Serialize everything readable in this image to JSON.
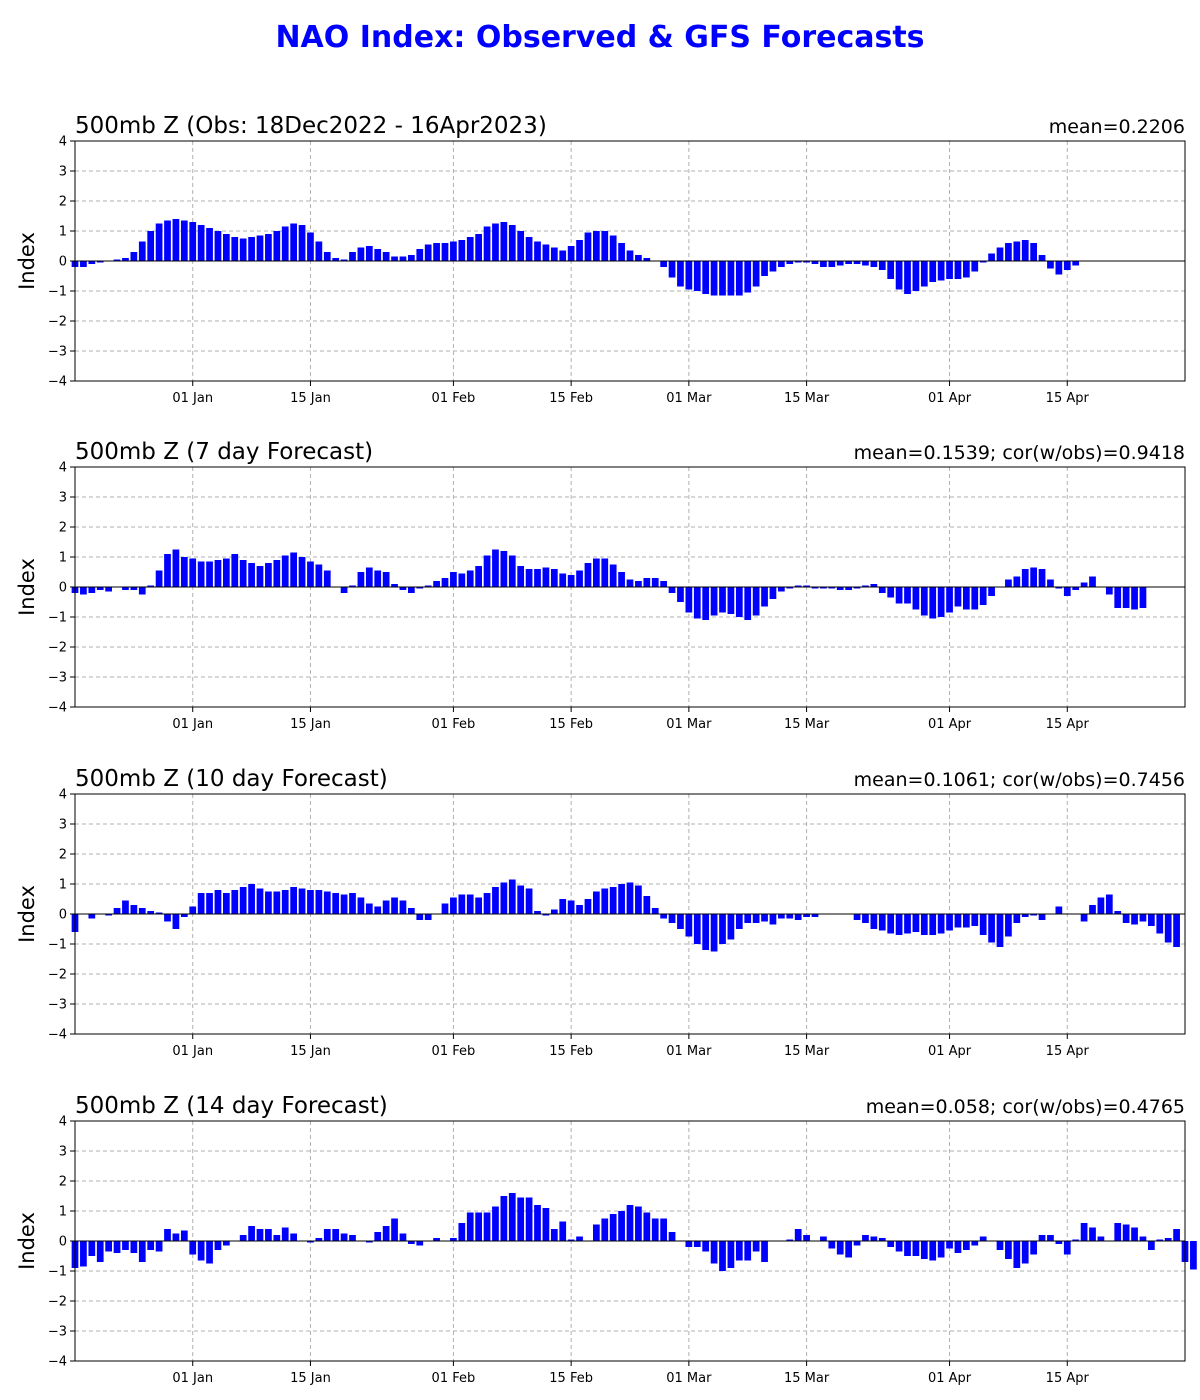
{
  "figure_title": "NAO Index: Observed & GFS Forecasts",
  "colors": {
    "title": "#0000ff",
    "bars": "#0000ff",
    "grid": "#b0b0b0",
    "axis": "#000000"
  },
  "chart_data": [
    {
      "type": "bar",
      "title": "500mb Z (Obs: 18Dec2022 - 16Apr2023)",
      "annotation": "mean=0.2206",
      "ylabel": "Index",
      "ylim": [
        -4,
        4
      ],
      "yticks": [
        4,
        3,
        2,
        1,
        0,
        -1,
        -2,
        -3,
        -4
      ],
      "grid": true,
      "x_start": "2022-12-18",
      "x_end": "2023-04-29",
      "xticks": [
        {
          "date": "2023-01-01",
          "label": "01 Jan"
        },
        {
          "date": "2023-01-15",
          "label": "15 Jan"
        },
        {
          "date": "2023-02-01",
          "label": "01 Feb"
        },
        {
          "date": "2023-02-15",
          "label": "15 Feb"
        },
        {
          "date": "2023-03-01",
          "label": "01 Mar"
        },
        {
          "date": "2023-03-15",
          "label": "15 Mar"
        },
        {
          "date": "2023-04-01",
          "label": "01 Apr"
        },
        {
          "date": "2023-04-15",
          "label": "15 Apr"
        }
      ],
      "start_date": "2022-12-18",
      "values": [
        -0.2,
        -0.2,
        -0.1,
        -0.05,
        0.0,
        0.05,
        0.1,
        0.3,
        0.65,
        1.0,
        1.25,
        1.35,
        1.4,
        1.35,
        1.3,
        1.2,
        1.1,
        1.0,
        0.9,
        0.8,
        0.75,
        0.8,
        0.85,
        0.9,
        1.0,
        1.15,
        1.25,
        1.2,
        0.95,
        0.65,
        0.3,
        0.1,
        0.05,
        0.3,
        0.45,
        0.5,
        0.4,
        0.3,
        0.15,
        0.15,
        0.2,
        0.4,
        0.55,
        0.6,
        0.6,
        0.65,
        0.7,
        0.8,
        0.9,
        1.15,
        1.25,
        1.3,
        1.2,
        1.0,
        0.8,
        0.65,
        0.55,
        0.45,
        0.35,
        0.5,
        0.7,
        0.95,
        1.0,
        1.0,
        0.85,
        0.6,
        0.35,
        0.2,
        0.1,
        0.0,
        -0.2,
        -0.55,
        -0.85,
        -0.95,
        -1.0,
        -1.1,
        -1.15,
        -1.15,
        -1.15,
        -1.15,
        -1.05,
        -0.85,
        -0.5,
        -0.35,
        -0.2,
        -0.1,
        -0.05,
        -0.05,
        -0.1,
        -0.2,
        -0.2,
        -0.15,
        -0.1,
        -0.1,
        -0.15,
        -0.2,
        -0.3,
        -0.6,
        -0.95,
        -1.1,
        -1.0,
        -0.85,
        -0.7,
        -0.65,
        -0.6,
        -0.6,
        -0.55,
        -0.35,
        -0.05,
        0.25,
        0.45,
        0.6,
        0.65,
        0.7,
        0.6,
        0.2,
        -0.25,
        -0.45,
        -0.3,
        -0.15
      ]
    },
    {
      "type": "bar",
      "title": "500mb Z (7 day Forecast)",
      "annotation": "mean=0.1539; cor(w/obs)=0.9418",
      "ylabel": "Index",
      "ylim": [
        -4,
        4
      ],
      "yticks": [
        4,
        3,
        2,
        1,
        0,
        -1,
        -2,
        -3,
        -4
      ],
      "grid": true,
      "x_start": "2022-12-18",
      "x_end": "2023-04-29",
      "xticks": [
        {
          "date": "2023-01-01",
          "label": "01 Jan"
        },
        {
          "date": "2023-01-15",
          "label": "15 Jan"
        },
        {
          "date": "2023-02-01",
          "label": "01 Feb"
        },
        {
          "date": "2023-02-15",
          "label": "15 Feb"
        },
        {
          "date": "2023-03-01",
          "label": "01 Mar"
        },
        {
          "date": "2023-03-15",
          "label": "15 Mar"
        },
        {
          "date": "2023-04-01",
          "label": "01 Apr"
        },
        {
          "date": "2023-04-15",
          "label": "15 Apr"
        }
      ],
      "start_date": "2022-12-18",
      "values": [
        -0.2,
        -0.25,
        -0.2,
        -0.1,
        -0.15,
        0.0,
        -0.1,
        -0.1,
        -0.25,
        0.05,
        0.55,
        1.1,
        1.25,
        1.0,
        0.95,
        0.85,
        0.85,
        0.9,
        0.95,
        1.1,
        0.9,
        0.8,
        0.7,
        0.8,
        0.9,
        1.05,
        1.15,
        1.0,
        0.85,
        0.75,
        0.55,
        0.0,
        -0.2,
        0.05,
        0.5,
        0.65,
        0.55,
        0.5,
        0.1,
        -0.1,
        -0.2,
        -0.05,
        0.05,
        0.2,
        0.3,
        0.5,
        0.45,
        0.55,
        0.7,
        1.05,
        1.25,
        1.2,
        1.05,
        0.7,
        0.6,
        0.6,
        0.65,
        0.6,
        0.45,
        0.4,
        0.55,
        0.8,
        0.95,
        0.95,
        0.75,
        0.5,
        0.25,
        0.2,
        0.3,
        0.3,
        0.2,
        -0.2,
        -0.5,
        -0.85,
        -1.05,
        -1.1,
        -0.95,
        -0.85,
        -0.9,
        -1.0,
        -1.1,
        -0.95,
        -0.65,
        -0.4,
        -0.15,
        -0.05,
        0.05,
        0.05,
        -0.05,
        -0.05,
        -0.05,
        -0.1,
        -0.1,
        -0.05,
        0.05,
        0.1,
        -0.2,
        -0.35,
        -0.55,
        -0.55,
        -0.75,
        -0.95,
        -1.05,
        -1.0,
        -0.85,
        -0.65,
        -0.75,
        -0.75,
        -0.6,
        -0.3,
        0.0,
        0.25,
        0.35,
        0.6,
        0.65,
        0.6,
        0.25,
        -0.05,
        -0.3,
        -0.1,
        0.15,
        0.35,
        0.0,
        -0.25,
        -0.7,
        -0.7,
        -0.75,
        -0.7
      ]
    },
    {
      "type": "bar",
      "title": "500mb Z (10 day Forecast)",
      "annotation": "mean=0.1061; cor(w/obs)=0.7456",
      "ylabel": "Index",
      "ylim": [
        -4,
        4
      ],
      "yticks": [
        4,
        3,
        2,
        1,
        0,
        -1,
        -2,
        -3,
        -4
      ],
      "grid": true,
      "x_start": "2022-12-18",
      "x_end": "2023-04-29",
      "xticks": [
        {
          "date": "2023-01-01",
          "label": "01 Jan"
        },
        {
          "date": "2023-01-15",
          "label": "15 Jan"
        },
        {
          "date": "2023-02-01",
          "label": "01 Feb"
        },
        {
          "date": "2023-02-15",
          "label": "15 Feb"
        },
        {
          "date": "2023-03-01",
          "label": "01 Mar"
        },
        {
          "date": "2023-03-15",
          "label": "15 Mar"
        },
        {
          "date": "2023-04-01",
          "label": "01 Apr"
        },
        {
          "date": "2023-04-15",
          "label": "15 Apr"
        }
      ],
      "start_date": "2022-12-18",
      "values": [
        -0.6,
        0.0,
        -0.15,
        0.0,
        -0.05,
        0.2,
        0.45,
        0.3,
        0.2,
        0.1,
        0.05,
        -0.25,
        -0.5,
        -0.1,
        0.25,
        0.7,
        0.7,
        0.8,
        0.7,
        0.8,
        0.9,
        1.0,
        0.85,
        0.75,
        0.75,
        0.8,
        0.9,
        0.85,
        0.8,
        0.8,
        0.75,
        0.7,
        0.65,
        0.7,
        0.55,
        0.35,
        0.25,
        0.45,
        0.55,
        0.45,
        0.2,
        -0.2,
        -0.2,
        0.0,
        0.35,
        0.55,
        0.65,
        0.65,
        0.55,
        0.7,
        0.9,
        1.05,
        1.15,
        0.95,
        0.85,
        0.1,
        -0.05,
        0.15,
        0.5,
        0.45,
        0.3,
        0.5,
        0.75,
        0.85,
        0.9,
        1.0,
        1.05,
        0.95,
        0.6,
        0.2,
        -0.15,
        -0.3,
        -0.5,
        -0.75,
        -1.0,
        -1.2,
        -1.25,
        -1.0,
        -0.85,
        -0.5,
        -0.3,
        -0.3,
        -0.25,
        -0.35,
        -0.15,
        -0.15,
        -0.2,
        -0.1,
        -0.1,
        0.0,
        0.0,
        0.0,
        0.0,
        -0.2,
        -0.3,
        -0.5,
        -0.55,
        -0.65,
        -0.7,
        -0.65,
        -0.6,
        -0.7,
        -0.7,
        -0.65,
        -0.55,
        -0.45,
        -0.45,
        -0.4,
        -0.7,
        -0.95,
        -1.1,
        -0.75,
        -0.3,
        -0.1,
        -0.05,
        -0.2,
        0.0,
        0.25,
        0.0,
        0.0,
        -0.25,
        0.3,
        0.55,
        0.65,
        0.1,
        -0.3,
        -0.35,
        -0.25,
        -0.4,
        -0.65,
        -0.95,
        -1.1
      ]
    },
    {
      "type": "bar",
      "title": "500mb Z (14 day Forecast)",
      "annotation": "mean=0.058; cor(w/obs)=0.4765",
      "ylabel": "Index",
      "ylim": [
        -4,
        4
      ],
      "yticks": [
        4,
        3,
        2,
        1,
        0,
        -1,
        -2,
        -3,
        -4
      ],
      "grid": true,
      "x_start": "2022-12-18",
      "x_end": "2023-04-29",
      "xticks": [
        {
          "date": "2023-01-01",
          "label": "01 Jan"
        },
        {
          "date": "2023-01-15",
          "label": "15 Jan"
        },
        {
          "date": "2023-02-01",
          "label": "01 Feb"
        },
        {
          "date": "2023-02-15",
          "label": "15 Feb"
        },
        {
          "date": "2023-03-01",
          "label": "01 Mar"
        },
        {
          "date": "2023-03-15",
          "label": "15 Mar"
        },
        {
          "date": "2023-04-01",
          "label": "01 Apr"
        },
        {
          "date": "2023-04-15",
          "label": "15 Apr"
        }
      ],
      "start_date": "2022-12-18",
      "values": [
        -0.9,
        -0.85,
        -0.5,
        -0.7,
        -0.35,
        -0.4,
        -0.3,
        -0.4,
        -0.7,
        -0.3,
        -0.35,
        0.4,
        0.25,
        0.35,
        -0.45,
        -0.65,
        -0.75,
        -0.3,
        -0.15,
        0.0,
        0.2,
        0.5,
        0.4,
        0.4,
        0.2,
        0.45,
        0.25,
        0.0,
        -0.05,
        0.1,
        0.4,
        0.4,
        0.25,
        0.2,
        0.0,
        -0.05,
        0.3,
        0.5,
        0.75,
        0.25,
        -0.1,
        -0.15,
        0.0,
        0.1,
        0.0,
        0.1,
        0.6,
        0.95,
        0.95,
        0.95,
        1.15,
        1.5,
        1.6,
        1.45,
        1.45,
        1.2,
        1.1,
        0.4,
        0.65,
        0.05,
        0.15,
        0.0,
        0.55,
        0.75,
        0.9,
        1.0,
        1.2,
        1.15,
        0.95,
        0.75,
        0.75,
        0.3,
        0.0,
        -0.2,
        -0.2,
        -0.35,
        -0.75,
        -1.0,
        -0.9,
        -0.65,
        -0.65,
        -0.35,
        -0.7,
        0.0,
        0.0,
        0.05,
        0.4,
        0.2,
        0.0,
        0.15,
        -0.25,
        -0.45,
        -0.55,
        -0.15,
        0.2,
        0.15,
        0.1,
        -0.2,
        -0.35,
        -0.5,
        -0.5,
        -0.6,
        -0.65,
        -0.55,
        -0.25,
        -0.4,
        -0.3,
        -0.15,
        0.15,
        0.0,
        -0.3,
        -0.6,
        -0.9,
        -0.75,
        -0.45,
        0.2,
        0.2,
        -0.1,
        -0.45,
        0.05,
        0.6,
        0.45,
        0.15,
        0.0,
        0.6,
        0.55,
        0.45,
        0.15,
        -0.3,
        0.05,
        0.1,
        0.4,
        -0.7,
        -0.95
      ]
    }
  ]
}
